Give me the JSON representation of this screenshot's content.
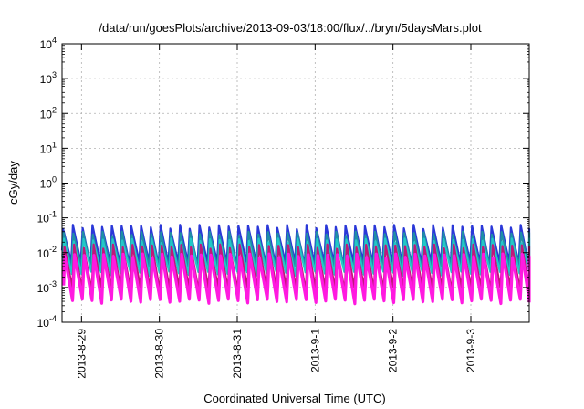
{
  "chart_data": {
    "type": "line",
    "title": "/data/run/goesPlots/archive/2013-09-03/18:00/flux/../bryn/5daysMars.plot",
    "xlabel": "Coordinated Universal Time (UTC)",
    "ylabel": "cGy/day",
    "y_scale": "log",
    "ylim": [
      0.0001,
      10000
    ],
    "y_ticks": [
      {
        "base": "10",
        "exp": "-4",
        "value": 0.0001
      },
      {
        "base": "10",
        "exp": "-3",
        "value": 0.001
      },
      {
        "base": "10",
        "exp": "-2",
        "value": 0.01
      },
      {
        "base": "10",
        "exp": "-1",
        "value": 0.1
      },
      {
        "base": "10",
        "exp": "0",
        "value": 1
      },
      {
        "base": "10",
        "exp": "1",
        "value": 10
      },
      {
        "base": "10",
        "exp": "2",
        "value": 100
      },
      {
        "base": "10",
        "exp": "3",
        "value": 1000
      },
      {
        "base": "10",
        "exp": "4",
        "value": 10000
      }
    ],
    "xlim": [
      "2013-08-28T18:00",
      "2013-09-03T18:00"
    ],
    "x_ticks": [
      "2013-8-29",
      "2013-8-30",
      "2013-8-31",
      "2013-9-1",
      "2013-9-2",
      "2013-9-3"
    ],
    "grid": true,
    "legend": "none",
    "oscillation_cycles_per_day": 8,
    "series": [
      {
        "color": "#2a38d8",
        "peak": 0.055,
        "trough": 0.005
      },
      {
        "color": "#1f8ea6",
        "peak": 0.035,
        "trough": 0.0035
      },
      {
        "color": "#22c8c8",
        "peak": 0.022,
        "trough": 0.0025
      },
      {
        "color": "#c0187a",
        "peak": 0.015,
        "trough": 0.0009
      },
      {
        "color": "#ff1ae0",
        "peak": 0.008,
        "trough": 0.0004
      }
    ]
  }
}
